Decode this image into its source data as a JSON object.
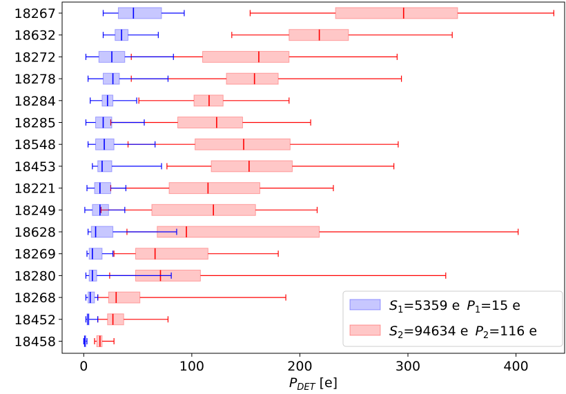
{
  "chart_data": {
    "type": "boxplot",
    "orientation": "horizontal",
    "xlabel_main": "P",
    "xlabel_sub": "DET",
    "xlabel_unit": " [e]",
    "xlim": [
      -20,
      445
    ],
    "xticks": [
      0,
      100,
      200,
      300,
      400
    ],
    "xtick_labels": [
      "0",
      "100",
      "200",
      "300",
      "400"
    ],
    "grid": false,
    "legend_position": "lower-right",
    "categories": [
      "18267",
      "18632",
      "18272",
      "18278",
      "18284",
      "18285",
      "18548",
      "18453",
      "18221",
      "18249",
      "18628",
      "18269",
      "18280",
      "18268",
      "18452",
      "18458"
    ],
    "series": [
      {
        "legend": {
          "S": "S",
          "S_sub": "1",
          "S_val": "=5359 e",
          "P": "P",
          "P_sub": "1",
          "P_val": "=15 e"
        },
        "color": "#0000ff",
        "fill": "rgba(0,0,255,0.22)",
        "boxes": [
          {
            "whislo": 18,
            "q1": 32,
            "med": 46,
            "q3": 72,
            "whishi": 93
          },
          {
            "whislo": 18,
            "q1": 29,
            "med": 35,
            "q3": 41,
            "whishi": 69
          },
          {
            "whislo": 2,
            "q1": 14,
            "med": 26,
            "q3": 38,
            "whishi": 83
          },
          {
            "whislo": 4,
            "q1": 18,
            "med": 27,
            "q3": 33,
            "whishi": 78
          },
          {
            "whislo": 6,
            "q1": 17,
            "med": 22,
            "q3": 27,
            "whishi": 49
          },
          {
            "whislo": 2,
            "q1": 11,
            "med": 18,
            "q3": 26,
            "whishi": 56
          },
          {
            "whislo": 4,
            "q1": 11,
            "med": 19,
            "q3": 28,
            "whishi": 66
          },
          {
            "whislo": 8,
            "q1": 13,
            "med": 17,
            "q3": 26,
            "whishi": 72
          },
          {
            "whislo": 3,
            "q1": 10,
            "med": 15,
            "q3": 25,
            "whishi": 39
          },
          {
            "whislo": 1,
            "q1": 8,
            "med": 15,
            "q3": 23,
            "whishi": 38
          },
          {
            "whislo": 4,
            "q1": 7,
            "med": 11,
            "q3": 27,
            "whishi": 86
          },
          {
            "whislo": 3,
            "q1": 5,
            "med": 8,
            "q3": 17,
            "whishi": 27
          },
          {
            "whislo": 2,
            "q1": 5,
            "med": 8,
            "q3": 12,
            "whishi": 81
          },
          {
            "whislo": 2,
            "q1": 4,
            "med": 6,
            "q3": 10,
            "whishi": 13
          },
          {
            "whislo": 2,
            "q1": 3,
            "med": 4,
            "q3": 5,
            "whishi": 13
          },
          {
            "whislo": 0,
            "q1": 0.5,
            "med": 1,
            "q3": 2,
            "whishi": 3
          }
        ]
      },
      {
        "legend": {
          "S": "S",
          "S_sub": "2",
          "S_val": "=94634 e",
          "P": "P",
          "P_sub": "2",
          "P_val": "=116 e"
        },
        "color": "#ff0000",
        "fill": "rgba(255,0,0,0.22)",
        "boxes": [
          {
            "whislo": 154,
            "q1": 233,
            "med": 296,
            "q3": 346,
            "whishi": 435
          },
          {
            "whislo": 137,
            "q1": 190,
            "med": 218,
            "q3": 245,
            "whishi": 341
          },
          {
            "whislo": 44,
            "q1": 110,
            "med": 162,
            "q3": 190,
            "whishi": 290
          },
          {
            "whislo": 44,
            "q1": 132,
            "med": 158,
            "q3": 180,
            "whishi": 294
          },
          {
            "whislo": 51,
            "q1": 102,
            "med": 116,
            "q3": 129,
            "whishi": 190
          },
          {
            "whislo": 25,
            "q1": 87,
            "med": 123,
            "q3": 147,
            "whishi": 210
          },
          {
            "whislo": 41,
            "q1": 103,
            "med": 148,
            "q3": 191,
            "whishi": 291
          },
          {
            "whislo": 77,
            "q1": 118,
            "med": 153,
            "q3": 193,
            "whishi": 287
          },
          {
            "whislo": 25,
            "q1": 79,
            "med": 115,
            "q3": 163,
            "whishi": 231
          },
          {
            "whislo": 16,
            "q1": 63,
            "med": 120,
            "q3": 159,
            "whishi": 216
          },
          {
            "whislo": 40,
            "q1": 68,
            "med": 95,
            "q3": 218,
            "whishi": 402
          },
          {
            "whislo": 28,
            "q1": 48,
            "med": 66,
            "q3": 115,
            "whishi": 180
          },
          {
            "whislo": 24,
            "q1": 48,
            "med": 71,
            "q3": 108,
            "whishi": 335
          },
          {
            "whislo": 13,
            "q1": 23,
            "med": 30,
            "q3": 52,
            "whishi": 187
          },
          {
            "whislo": 13,
            "q1": 22,
            "med": 27,
            "q3": 37,
            "whishi": 78
          },
          {
            "whislo": 10,
            "q1": 12,
            "med": 15,
            "q3": 17,
            "whishi": 28
          }
        ]
      }
    ]
  }
}
